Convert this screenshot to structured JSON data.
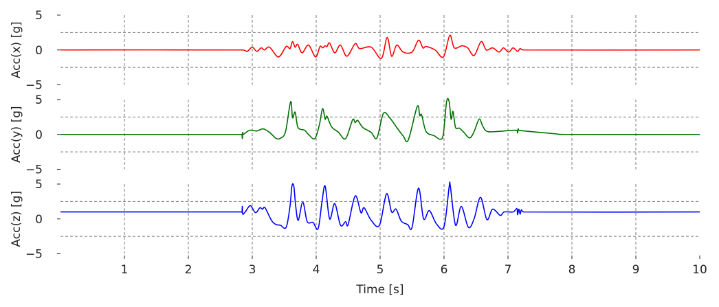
{
  "chart_data": [
    {
      "type": "line",
      "ylabel": "Acc(x) [g]",
      "color": "#ff0000",
      "baseline": 0,
      "ylim": [
        -5,
        5
      ],
      "yticks": [
        5,
        0,
        -5
      ],
      "ytick_labels": [
        "5",
        "0",
        "−5"
      ],
      "hlines": [
        2.5,
        -2.5
      ],
      "points": [
        [
          2.92,
          -0.2
        ],
        [
          3.0,
          0.4
        ],
        [
          3.07,
          -0.2
        ],
        [
          3.14,
          0.3
        ],
        [
          3.19,
          0
        ],
        [
          3.27,
          0.4
        ],
        [
          3.41,
          -1.0
        ],
        [
          3.53,
          0.5
        ],
        [
          3.59,
          0.2
        ],
        [
          3.63,
          1.2
        ],
        [
          3.67,
          0.4
        ],
        [
          3.71,
          0.8
        ],
        [
          3.78,
          -0.4
        ],
        [
          3.88,
          0.7
        ],
        [
          3.99,
          -1.0
        ],
        [
          4.06,
          0.5
        ],
        [
          4.1,
          0.3
        ],
        [
          4.14,
          0.6
        ],
        [
          4.17,
          0.5
        ],
        [
          4.21,
          1.0
        ],
        [
          4.29,
          -0.4
        ],
        [
          4.38,
          0.7
        ],
        [
          4.48,
          -0.9
        ],
        [
          4.61,
          0.9
        ],
        [
          4.68,
          0.2
        ],
        [
          4.86,
          0.4
        ],
        [
          5.02,
          -1.2
        ],
        [
          5.11,
          1.8
        ],
        [
          5.18,
          -0.9
        ],
        [
          5.26,
          0.7
        ],
        [
          5.36,
          -0.3
        ],
        [
          5.5,
          -0.3
        ],
        [
          5.6,
          1.4
        ],
        [
          5.67,
          0.3
        ],
        [
          5.72,
          0.5
        ],
        [
          5.86,
          0
        ],
        [
          5.99,
          -1.0
        ],
        [
          6.09,
          2.1
        ],
        [
          6.16,
          0.3
        ],
        [
          6.28,
          0.6
        ],
        [
          6.37,
          0.3
        ],
        [
          6.47,
          -0.8
        ],
        [
          6.58,
          1.2
        ],
        [
          6.66,
          0
        ],
        [
          6.76,
          0.3
        ],
        [
          6.86,
          -0.3
        ],
        [
          6.93,
          0.3
        ],
        [
          7.01,
          -0.3
        ],
        [
          7.08,
          0.3
        ],
        [
          7.15,
          -0.2
        ],
        [
          7.19,
          0.2
        ],
        [
          7.25,
          0
        ]
      ]
    },
    {
      "type": "line",
      "ylabel": "Acc(y) [g]",
      "color": "#007000",
      "baseline": 0,
      "ylim": [
        -5,
        5
      ],
      "yticks": [
        5,
        0,
        -5
      ],
      "ytick_labels": [
        "5",
        "0",
        "−5"
      ],
      "hlines": [
        2.5,
        -2.5
      ],
      "points": [
        [
          2.84,
          0
        ],
        [
          2.845,
          -0.6
        ],
        [
          2.85,
          0.3
        ],
        [
          2.86,
          0
        ],
        [
          2.96,
          0.6
        ],
        [
          3.07,
          0.5
        ],
        [
          3.17,
          0.8
        ],
        [
          3.27,
          0.3
        ],
        [
          3.37,
          -0.55
        ],
        [
          3.44,
          -0.55
        ],
        [
          3.52,
          0.4
        ],
        [
          3.6,
          4.7
        ],
        [
          3.63,
          2.4
        ],
        [
          3.67,
          3.2
        ],
        [
          3.71,
          1.1
        ],
        [
          3.77,
          0.7
        ],
        [
          3.82,
          0.6
        ],
        [
          3.89,
          -0.1
        ],
        [
          3.98,
          -0.6
        ],
        [
          4.05,
          1.4
        ],
        [
          4.1,
          3.7
        ],
        [
          4.14,
          2.2
        ],
        [
          4.17,
          2.6
        ],
        [
          4.24,
          1.1
        ],
        [
          4.35,
          0.3
        ],
        [
          4.46,
          -0.6
        ],
        [
          4.57,
          2.1
        ],
        [
          4.61,
          1.7
        ],
        [
          4.65,
          2.0
        ],
        [
          4.73,
          1.0
        ],
        [
          4.86,
          0.3
        ],
        [
          4.95,
          -0.5
        ],
        [
          5.05,
          3.0
        ],
        [
          5.15,
          2.4
        ],
        [
          5.26,
          1.0
        ],
        [
          5.36,
          -0.2
        ],
        [
          5.44,
          -0.8
        ],
        [
          5.58,
          4.0
        ],
        [
          5.62,
          2.7
        ],
        [
          5.65,
          2.8
        ],
        [
          5.72,
          0.4
        ],
        [
          5.85,
          -0.2
        ],
        [
          5.94,
          -0.7
        ],
        [
          5.99,
          0.1
        ],
        [
          6.04,
          4.7
        ],
        [
          6.08,
          4.7
        ],
        [
          6.11,
          2.2
        ],
        [
          6.14,
          3.3
        ],
        [
          6.18,
          1.0
        ],
        [
          6.24,
          0.9
        ],
        [
          6.31,
          0.3
        ],
        [
          6.4,
          -0.5
        ],
        [
          6.47,
          0.4
        ],
        [
          6.55,
          2.2
        ],
        [
          6.61,
          1.1
        ],
        [
          6.69,
          0.4
        ],
        [
          6.94,
          0.5
        ],
        [
          7.14,
          0.6
        ],
        [
          7.15,
          0.2
        ],
        [
          7.16,
          0.8
        ],
        [
          7.17,
          0.6
        ],
        [
          7.37,
          0.4
        ],
        [
          7.73,
          0.1
        ],
        [
          7.9,
          0
        ]
      ]
    },
    {
      "type": "line",
      "ylabel": "Acc(z) [g]",
      "color": "#0000ff",
      "baseline": 1.0,
      "ylim": [
        -5,
        5
      ],
      "yticks": [
        5,
        0,
        -5
      ],
      "ytick_labels": [
        "5",
        "0",
        "−5"
      ],
      "hlines": [
        2.5,
        -2.5
      ],
      "points": [
        [
          2.84,
          1.0
        ],
        [
          2.845,
          1.8
        ],
        [
          2.85,
          0.7
        ],
        [
          2.89,
          1.0
        ],
        [
          2.97,
          1.9
        ],
        [
          3.05,
          0.9
        ],
        [
          3.12,
          1.6
        ],
        [
          3.16,
          1.4
        ],
        [
          3.2,
          1.6
        ],
        [
          3.3,
          -0.2
        ],
        [
          3.37,
          -0.8
        ],
        [
          3.44,
          -0.9
        ],
        [
          3.53,
          -1.2
        ],
        [
          3.59,
          1.8
        ],
        [
          3.62,
          4.7
        ],
        [
          3.65,
          4.7
        ],
        [
          3.68,
          1.8
        ],
        [
          3.72,
          -0.2
        ],
        [
          3.79,
          2.4
        ],
        [
          3.86,
          -0.4
        ],
        [
          3.95,
          -0.5
        ],
        [
          4.03,
          -1.4
        ],
        [
          4.09,
          2.4
        ],
        [
          4.14,
          4.7
        ],
        [
          4.21,
          0
        ],
        [
          4.29,
          2.2
        ],
        [
          4.38,
          -0.9
        ],
        [
          4.46,
          -0.4
        ],
        [
          4.5,
          -0.8
        ],
        [
          4.61,
          3.3
        ],
        [
          4.7,
          0.9
        ],
        [
          4.75,
          1.6
        ],
        [
          4.86,
          -0.2
        ],
        [
          4.99,
          -0.9
        ],
        [
          5.1,
          3.6
        ],
        [
          5.18,
          1.0
        ],
        [
          5.25,
          1.4
        ],
        [
          5.33,
          -0.3
        ],
        [
          5.43,
          -0.8
        ],
        [
          5.5,
          -1.2
        ],
        [
          5.6,
          4.4
        ],
        [
          5.68,
          0
        ],
        [
          5.77,
          1.2
        ],
        [
          5.88,
          -0.7
        ],
        [
          6.0,
          -1.1
        ],
        [
          6.08,
          4.6
        ],
        [
          6.1,
          4.6
        ],
        [
          6.18,
          -0.9
        ],
        [
          6.27,
          1.8
        ],
        [
          6.38,
          -1.2
        ],
        [
          6.47,
          0
        ],
        [
          6.57,
          3.1
        ],
        [
          6.67,
          -0.1
        ],
        [
          6.76,
          1.4
        ],
        [
          6.88,
          0.5
        ],
        [
          6.94,
          1.0
        ],
        [
          7.08,
          1.0
        ],
        [
          7.14,
          1.5
        ],
        [
          7.15,
          0.6
        ],
        [
          7.17,
          1.4
        ],
        [
          7.19,
          0.7
        ],
        [
          7.21,
          1.3
        ],
        [
          7.25,
          1.0
        ]
      ]
    }
  ],
  "xaxis": {
    "xlabel": "Time [s]",
    "xlim": [
      0,
      10
    ],
    "xticks": [
      1,
      2,
      3,
      4,
      5,
      6,
      7,
      8,
      9,
      10
    ],
    "xtick_labels": [
      "1",
      "2",
      "3",
      "4",
      "5",
      "6",
      "7",
      "8",
      "9",
      "10"
    ]
  }
}
